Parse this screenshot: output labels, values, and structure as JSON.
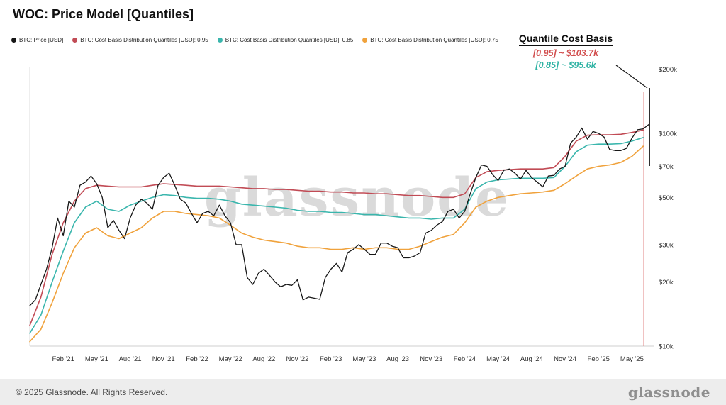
{
  "header": {
    "title": "WOC: Price Model [Quantiles]"
  },
  "legend": {
    "items": [
      {
        "id": "btc-price",
        "label": "BTC: Price [USD]",
        "color": "#161616"
      },
      {
        "id": "q95",
        "label": "BTC: Cost Basis Distribution Quantiles [USD]: 0.95",
        "color": "#c14b55"
      },
      {
        "id": "q85",
        "label": "BTC: Cost Basis Distribution Quantiles [USD]: 0.85",
        "color": "#3ab6ad"
      },
      {
        "id": "q75",
        "label": "BTC: Cost Basis Distribution Quantiles [USD]: 0.75",
        "color": "#f0a23c"
      }
    ]
  },
  "annotation": {
    "title": "Quantile Cost Basis",
    "q95": {
      "text": "[0.95] ~ $103.7k",
      "color": "#d24f4f"
    },
    "q85": {
      "text": "[0.85] ~ $95.6k",
      "color": "#2fb3a4"
    }
  },
  "watermark": {
    "text": "glassnode"
  },
  "footer": {
    "copyright": "© 2025 Glassnode. All Rights Reserved.",
    "brand": "glassnode"
  },
  "chart_data": {
    "type": "line",
    "title": "WOC: Price Model [Quantiles]",
    "yscale": "log",
    "grid": false,
    "legend_position": "top-left",
    "unit": "USD thousands",
    "x_unit": "months since Nov 2020 (fractional = intra-month)",
    "ylim": [
      10,
      230
    ],
    "y_ticks": [
      {
        "v": 10,
        "label": "$10k"
      },
      {
        "v": 20,
        "label": "$20k"
      },
      {
        "v": 30,
        "label": "$30k"
      },
      {
        "v": 50,
        "label": "$50k"
      },
      {
        "v": 70,
        "label": "$70k"
      },
      {
        "v": 100,
        "label": "$100k"
      },
      {
        "v": 200,
        "label": "$200k"
      }
    ],
    "x_ticks": [
      {
        "t": 3,
        "label": "Feb '21"
      },
      {
        "t": 6,
        "label": "May '21"
      },
      {
        "t": 9,
        "label": "Aug '21"
      },
      {
        "t": 12,
        "label": "Nov '21"
      },
      {
        "t": 15,
        "label": "Feb '22"
      },
      {
        "t": 18,
        "label": "May '22"
      },
      {
        "t": 21,
        "label": "Aug '22"
      },
      {
        "t": 24,
        "label": "Nov '22"
      },
      {
        "t": 27,
        "label": "Feb '23"
      },
      {
        "t": 30,
        "label": "May '23"
      },
      {
        "t": 33,
        "label": "Aug '23"
      },
      {
        "t": 36,
        "label": "Nov '23"
      },
      {
        "t": 39,
        "label": "Feb '24"
      },
      {
        "t": 42,
        "label": "May '24"
      },
      {
        "t": 45,
        "label": "Aug '24"
      },
      {
        "t": 48,
        "label": "Nov '24"
      },
      {
        "t": 51,
        "label": "Feb '25"
      },
      {
        "t": 54,
        "label": "May '25"
      }
    ],
    "series": [
      {
        "id": "btc-price",
        "name": "BTC: Price [USD]",
        "color": "#161616",
        "width": 1.3,
        "x_start": 0,
        "x_step": 0.5,
        "values": [
          15.5,
          16.5,
          19.5,
          23,
          29,
          40,
          33,
          48,
          45,
          57,
          59,
          63,
          58,
          50,
          36,
          39,
          35,
          32,
          40,
          46,
          49,
          47,
          44,
          57,
          62,
          65,
          57,
          49,
          47,
          42,
          38,
          42,
          43,
          41,
          46,
          41,
          38,
          30,
          30,
          21,
          19.5,
          22,
          23,
          21.5,
          20,
          19,
          19.5,
          19.3,
          20.5,
          16.5,
          17,
          16.8,
          16.6,
          21,
          23,
          24.5,
          22.3,
          27.5,
          28.5,
          30,
          28.5,
          27,
          27,
          30.5,
          30.5,
          29.5,
          29,
          26,
          26,
          26.5,
          27.5,
          34,
          35,
          37,
          38.5,
          43,
          44,
          40,
          43,
          52,
          62,
          71,
          70,
          64,
          60,
          67,
          68,
          65,
          61,
          67,
          62,
          59,
          56,
          63,
          63.5,
          68,
          70,
          90,
          96,
          106,
          94,
          102,
          100,
          96,
          84,
          83,
          83,
          85,
          95,
          104,
          105,
          110
        ]
      },
      {
        "id": "q95",
        "name": "BTC: Cost Basis Distribution Quantiles [USD]: 0.95",
        "color": "#c14b55",
        "width": 1.6,
        "x_start": 0,
        "x_step": 1,
        "values": [
          12.5,
          17,
          27,
          38,
          48,
          55,
          57,
          56.5,
          56,
          56,
          56,
          57,
          58,
          57.5,
          57,
          56.5,
          56.5,
          56.5,
          56,
          55.5,
          55,
          55,
          54.5,
          54.5,
          54,
          53.5,
          53.5,
          53,
          53,
          52.5,
          52.5,
          52,
          52,
          51.5,
          51,
          51,
          50.5,
          50,
          50,
          52,
          62,
          66,
          67,
          67.5,
          68,
          68,
          68,
          69,
          78,
          92,
          98,
          98.5,
          98.5,
          99,
          101,
          103.7
        ]
      },
      {
        "id": "q85",
        "name": "BTC: Cost Basis Distribution Quantiles [USD]: 0.85",
        "color": "#3ab6ad",
        "width": 1.6,
        "x_start": 0,
        "x_step": 1,
        "values": [
          11.5,
          14,
          20,
          28,
          38,
          45,
          48,
          44,
          43,
          46,
          48,
          50,
          51.5,
          51,
          50,
          49.5,
          49.5,
          49,
          48,
          46.5,
          46,
          45.5,
          45,
          44.5,
          43.5,
          43,
          43,
          42.5,
          42.5,
          42,
          41.5,
          41.5,
          41,
          40.5,
          40,
          40,
          39.5,
          40,
          40,
          44,
          55,
          59,
          60.5,
          61,
          61.5,
          61.5,
          61.5,
          62,
          70,
          82,
          88,
          89,
          89,
          89.5,
          92,
          95.6
        ]
      },
      {
        "id": "q75",
        "name": "BTC: Cost Basis Distribution Quantiles [USD]: 0.75",
        "color": "#f0a23c",
        "width": 1.6,
        "x_start": 0,
        "x_step": 1,
        "values": [
          10.5,
          12,
          16,
          22,
          29,
          34,
          36,
          33,
          32,
          34,
          36,
          40,
          43,
          43,
          42,
          41.5,
          41,
          40,
          37,
          34,
          32.5,
          31.5,
          31,
          30.5,
          29.5,
          29,
          29,
          28.5,
          28.5,
          29,
          28.5,
          29,
          29,
          28.5,
          28.5,
          29.5,
          31,
          32.5,
          33.5,
          38,
          45,
          48,
          50,
          51,
          52,
          52.5,
          53,
          54,
          58,
          63,
          68,
          70,
          71,
          73,
          78,
          87
        ]
      }
    ]
  }
}
